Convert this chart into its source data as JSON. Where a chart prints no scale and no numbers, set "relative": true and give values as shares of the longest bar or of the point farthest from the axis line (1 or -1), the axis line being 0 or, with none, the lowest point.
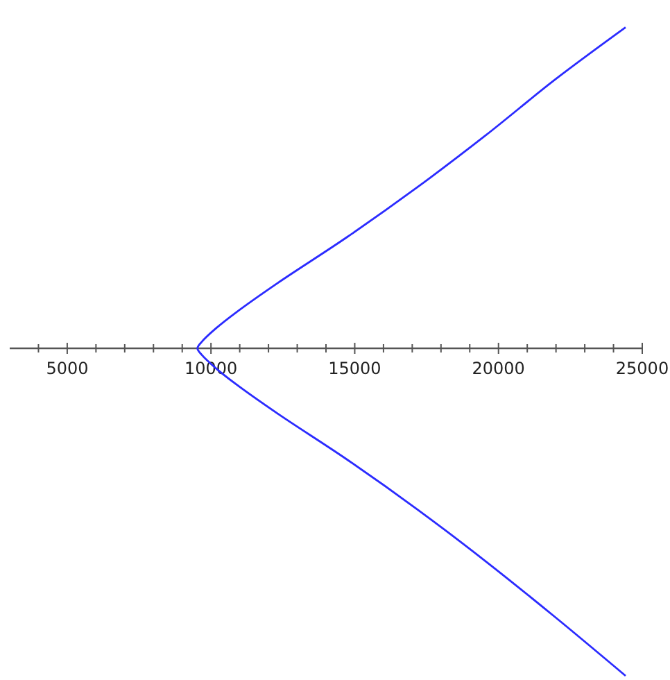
{
  "chart_data": {
    "type": "line",
    "relative": true,
    "xlim": [
      3000,
      25000
    ],
    "xticks": [
      {
        "value": 4000,
        "label": null
      },
      5000,
      {
        "value": 6000,
        "label": null
      },
      {
        "value": 7000,
        "label": null
      },
      {
        "value": 8000,
        "label": null
      },
      {
        "value": 9000,
        "label": null
      },
      10000,
      {
        "value": 11000,
        "label": null
      },
      {
        "value": 12000,
        "label": null
      },
      {
        "value": 13000,
        "label": null
      },
      {
        "value": 14000,
        "label": null
      },
      15000,
      {
        "value": 16000,
        "label": null
      },
      {
        "value": 17000,
        "label": null
      },
      {
        "value": 18000,
        "label": null
      },
      {
        "value": 19000,
        "label": null
      },
      20000,
      {
        "value": 21000,
        "label": null
      },
      {
        "value": 22000,
        "label": null
      },
      {
        "value": 23000,
        "label": null
      },
      {
        "value": 24000,
        "label": null
      },
      25000
    ],
    "grid": false,
    "marker": "none",
    "line_style": "solid",
    "series": [
      {
        "color": "#2b2bff",
        "x": [
          24420,
          21960,
          19550,
          17150,
          14740,
          12330,
          10880,
          10160,
          9680,
          9530,
          9680,
          10160,
          10880,
          12330,
          14740,
          17150,
          19550,
          21960,
          24420
        ],
        "values": [
          0.98,
          0.82,
          0.65,
          0.49,
          0.34,
          0.2,
          0.11,
          0.06,
          0.02,
          0,
          -0.02,
          -0.06,
          -0.11,
          -0.2,
          -0.34,
          -0.49,
          -0.65,
          -0.82,
          -1
        ]
      }
    ]
  }
}
